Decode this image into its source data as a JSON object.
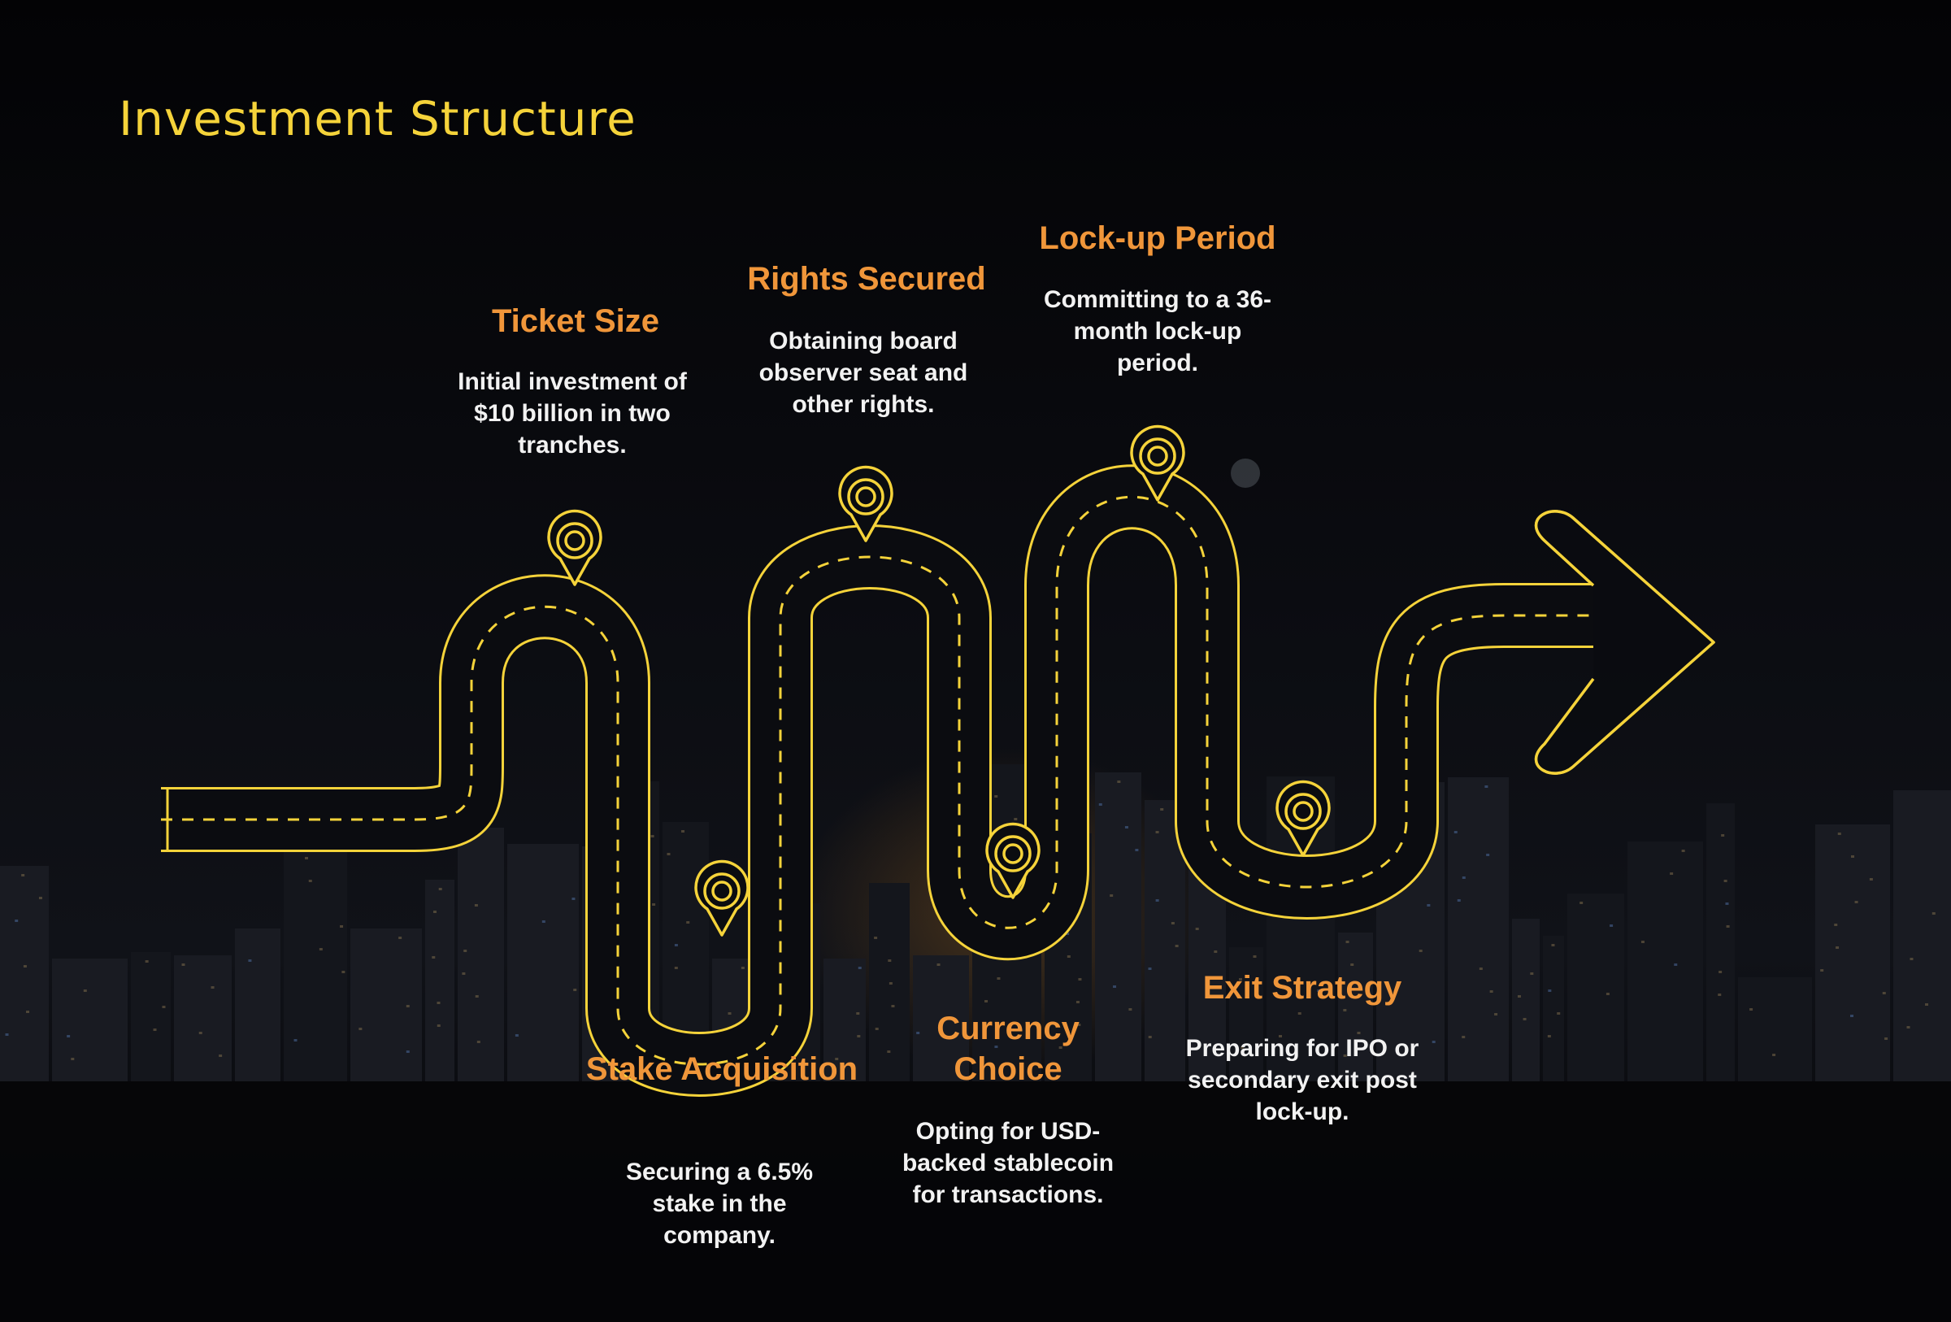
{
  "page": {
    "title": "Investment Structure"
  },
  "colors": {
    "title": "#f5d33a",
    "road": "#f5d33a",
    "step_title": "#f0963a",
    "step_text": "#f2f2f2",
    "background": "#050507"
  },
  "steps": [
    {
      "title": "Ticket Size",
      "description": "Initial investment of $10 billion in two tranches."
    },
    {
      "title": "Stake Acquisition",
      "description": "Securing a 6.5% stake in the company."
    },
    {
      "title": "Rights Secured",
      "description": "Obtaining board observer seat and other rights."
    },
    {
      "title": "Currency Choice",
      "description": "Opting for USD-backed stablecoin for transactions."
    },
    {
      "title": "Lock-up Period",
      "description": "Committing to a 36-month lock-up period."
    },
    {
      "title": "Exit Strategy",
      "description": "Preparing for IPO or secondary exit post lock-up."
    }
  ],
  "icons": {
    "marker": "location-pin-icon",
    "arrow": "arrow-right-icon"
  }
}
